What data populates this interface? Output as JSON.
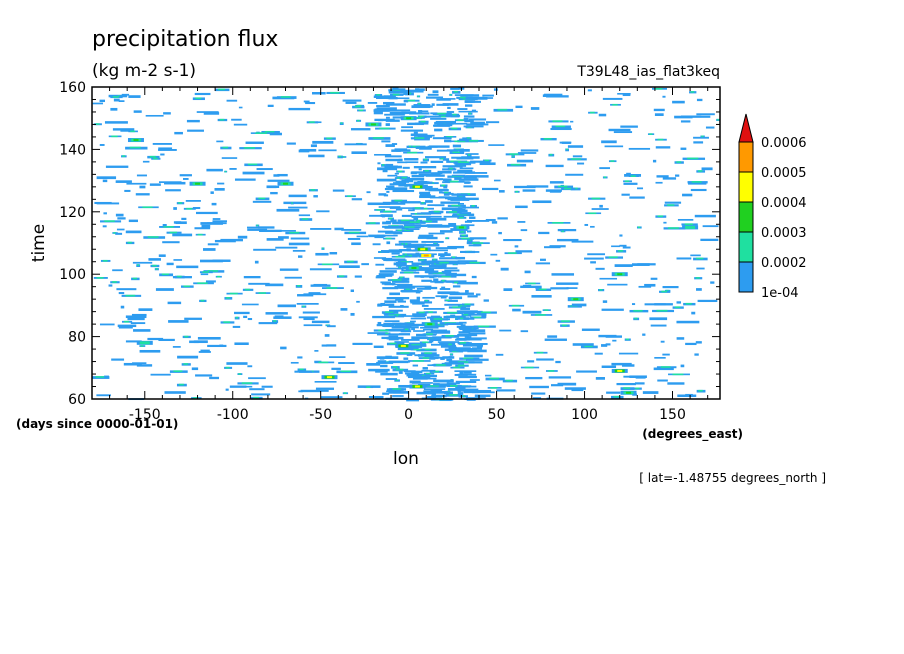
{
  "chart_data": {
    "type": "heatmap",
    "title": "precipitation flux",
    "subtitle": "(kg m-2 s-1)",
    "dataset_label": "T39L48_ias_flat3keq",
    "xlabel": "lon",
    "ylabel": "time",
    "x_units": "(degrees_east)",
    "y_units": "(days since 0000-01-01)",
    "slice_label": "[ lat=-1.48755 degrees_north ]",
    "xlim": [
      -180,
      177
    ],
    "ylim": [
      60,
      160
    ],
    "x_ticks": [
      -150,
      -100,
      -50,
      0,
      50,
      100,
      150
    ],
    "x_tick_labels": [
      "-150",
      "-100",
      "-50",
      "0",
      "50",
      "100",
      "150"
    ],
    "y_ticks": [
      60,
      80,
      100,
      120,
      140,
      160
    ],
    "y_tick_labels": [
      "60",
      "80",
      "100",
      "120",
      "140",
      "160"
    ],
    "colorbar": {
      "levels": [
        0.0001,
        0.0002,
        0.0003,
        0.0004,
        0.0005,
        0.0006
      ],
      "level_labels": [
        "1e-04",
        "0.0002",
        "0.0003",
        "0.0004",
        "0.0005",
        "0.0006"
      ],
      "colors": [
        "#2d9cf0",
        "#1fe0a0",
        "#20d020",
        "#ffff00",
        "#ff9900",
        "#e01010"
      ],
      "extend": "max"
    },
    "series": [
      {
        "points": [
          {
            "x": 0,
            "y": 150,
            "level": 0.0003
          },
          {
            "x": 5,
            "y": 128,
            "level": 0.0004
          },
          {
            "x": 8,
            "y": 108,
            "level": 0.0004
          },
          {
            "x": 10,
            "y": 106,
            "level": 0.0005
          },
          {
            "x": 3,
            "y": 102,
            "level": 0.0003
          },
          {
            "x": 12,
            "y": 84,
            "level": 0.0003
          },
          {
            "x": -3,
            "y": 77,
            "level": 0.0004
          },
          {
            "x": 5,
            "y": 64,
            "level": 0.0004
          },
          {
            "x": -45,
            "y": 67,
            "level": 0.0004
          },
          {
            "x": 125,
            "y": 62,
            "level": 0.0003
          },
          {
            "x": 120,
            "y": 69,
            "level": 0.0004
          },
          {
            "x": -155,
            "y": 143,
            "level": 0.0003
          },
          {
            "x": -70,
            "y": 129,
            "level": 0.0003
          },
          {
            "x": -120,
            "y": 129,
            "level": 0.0003
          },
          {
            "x": -20,
            "y": 148,
            "level": 0.0003
          },
          {
            "x": 30,
            "y": 115,
            "level": 0.0003
          },
          {
            "x": 120,
            "y": 100,
            "level": 0.0003
          },
          {
            "x": 95,
            "y": 92,
            "level": 0.0003
          },
          {
            "x": 160,
            "y": 115,
            "level": 0.0002
          },
          {
            "x": -150,
            "y": 78,
            "level": 0.0002
          }
        ]
      }
    ]
  }
}
